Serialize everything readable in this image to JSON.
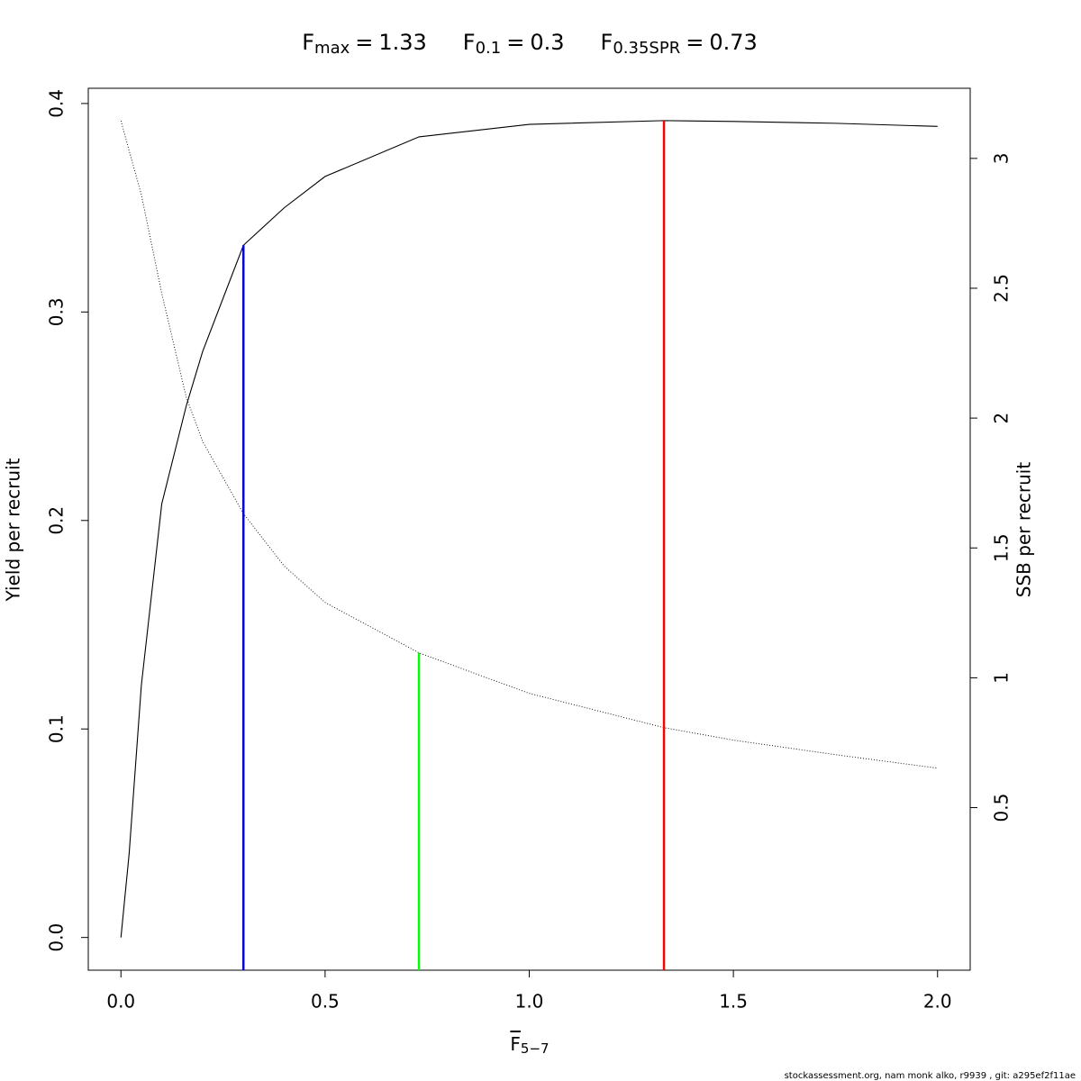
{
  "chart_data": {
    "type": "line",
    "title_parts": [
      {
        "symbol": "F",
        "subscript": "max",
        "relation": "=",
        "value": 1.33
      },
      {
        "symbol": "F",
        "subscript": "0.1",
        "relation": "=",
        "value": 0.3
      },
      {
        "symbol": "F",
        "subscript": "0.35SPR",
        "relation": "=",
        "value": 0.73
      }
    ],
    "xlabel": "F",
    "xlabel_subscript": "5−7",
    "ylabel": "Yield per recruit",
    "y2label": "SSB per recruit",
    "footer": "stockassessment.org, nam  monk  alko, r9939 , git: a295ef2f11ae",
    "x": [
      0,
      0.02,
      0.05,
      0.1,
      0.16,
      0.2,
      0.3,
      0.4,
      0.5,
      0.73,
      1.0,
      1.33,
      1.5,
      1.75,
      2.0
    ],
    "series": [
      {
        "name": "Yield per recruit",
        "color": "#000000",
        "dash": "solid",
        "values": [
          0,
          0.04,
          0.121,
          0.208,
          0.255,
          0.281,
          0.332,
          0.35,
          0.365,
          0.384,
          0.39,
          0.3918,
          0.3914,
          0.3905,
          0.389
        ]
      },
      {
        "name": "SSB per recruit",
        "color": "#000000",
        "dash": "dotted",
        "axis": "y2",
        "values": [
          3.145,
          3.03,
          2.86,
          2.48,
          2.08,
          1.91,
          1.632,
          1.43,
          1.29,
          1.096,
          0.94,
          0.808,
          0.76,
          0.704,
          0.652
        ]
      }
    ],
    "reference_lines": [
      {
        "x": 0.3,
        "top": 0.332,
        "color": "#0000ff"
      },
      {
        "x": 0.73,
        "top": 1.096,
        "axis": "y2",
        "color": "#00ff00"
      },
      {
        "x": 1.33,
        "top": 0.3918,
        "color": "#ff0000"
      }
    ],
    "xlim": [
      -0.08,
      2.08
    ],
    "ylim": [
      -0.0157,
      0.4073
    ],
    "y2lim": [
      -0.126,
      3.27
    ],
    "xticks": [
      {
        "value": 0,
        "label": "0.0"
      },
      {
        "value": 0.5,
        "label": "0.5"
      },
      {
        "value": 1,
        "label": "1.0"
      },
      {
        "value": 1.5,
        "label": "1.5"
      },
      {
        "value": 2,
        "label": "2.0"
      }
    ],
    "yticks": [
      {
        "value": 0,
        "label": "0.0"
      },
      0.1,
      0.2,
      0.3,
      0.4
    ],
    "y2ticks": [
      0.5,
      1,
      1.5,
      2,
      2.5,
      3
    ],
    "grid": false
  }
}
